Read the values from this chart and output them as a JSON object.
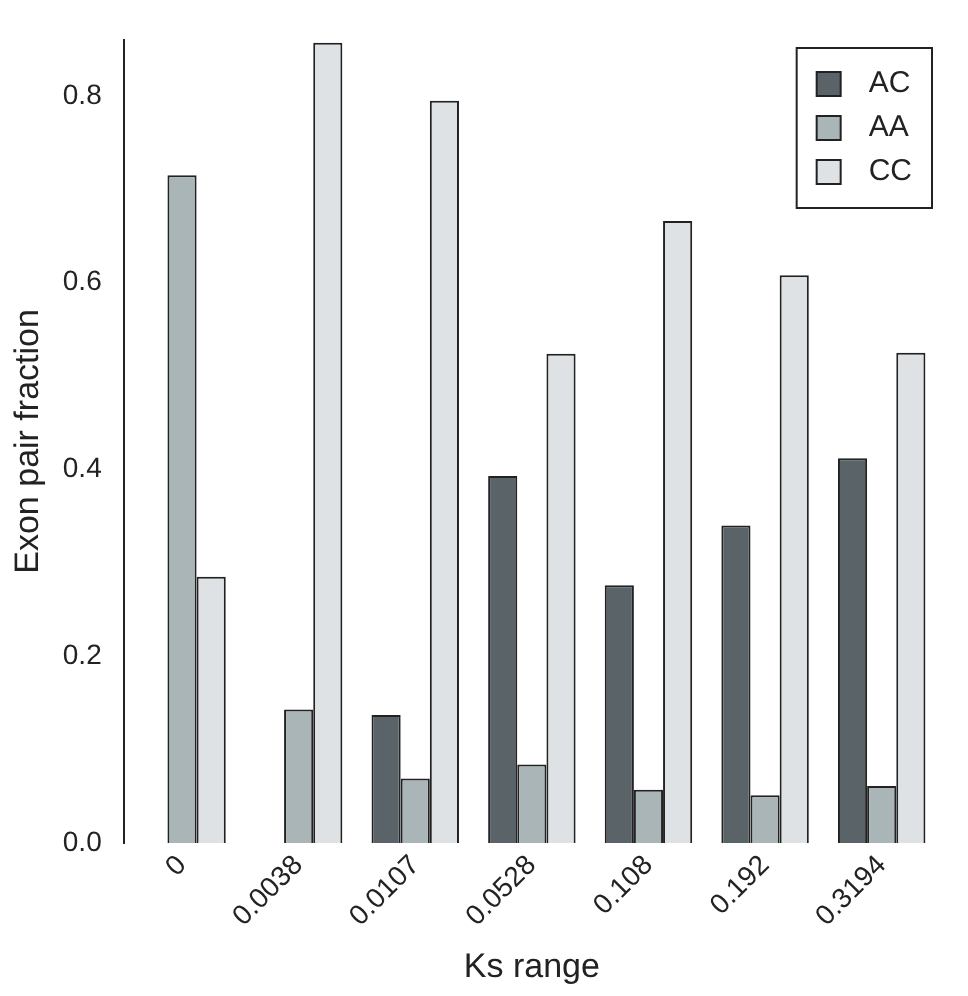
{
  "chart_data": {
    "type": "bar",
    "xlabel": "Ks range",
    "ylabel": "Exon pair fraction",
    "categories": [
      "0",
      "0.0038",
      "0.0107",
      "0.0528",
      "0.108",
      "0.192",
      "0.3194"
    ],
    "series": [
      {
        "name": "AC",
        "color": "#5a6468",
        "values": [
          0,
          0,
          0.137,
          0.393,
          0.276,
          0.34,
          0.412
        ]
      },
      {
        "name": "AA",
        "color": "#aab5b8",
        "values": [
          0.715,
          0.143,
          0.069,
          0.084,
          0.057,
          0.051,
          0.061
        ]
      },
      {
        "name": "CC",
        "color": "#dfe2e4",
        "values": [
          0.285,
          0.857,
          0.795,
          0.524,
          0.666,
          0.608,
          0.525
        ]
      }
    ],
    "ylim": [
      0,
      0.86
    ],
    "yticks": [
      {
        "value": 0,
        "label": "0.0"
      },
      0.2,
      0.4,
      0.6,
      0.8
    ],
    "grid": false,
    "legend": "top right"
  }
}
